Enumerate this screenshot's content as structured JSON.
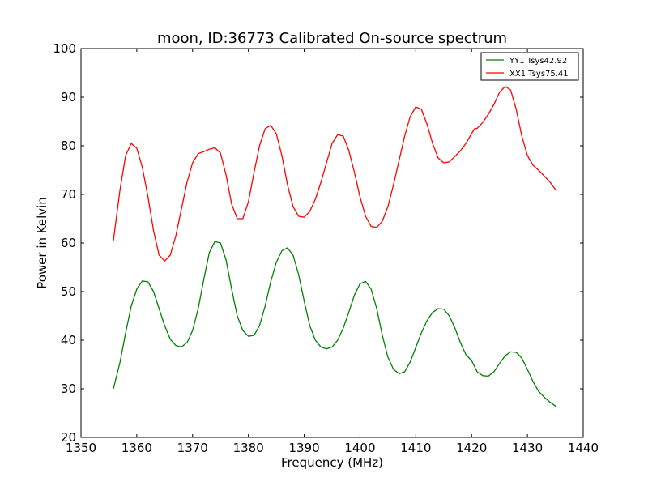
{
  "chart_data": {
    "type": "line",
    "title": "moon, ID:36773 Calibrated On-source spectrum",
    "xlabel": "Frequency (MHz)",
    "ylabel": "Power in Kelvin",
    "xlim": [
      1350,
      1440
    ],
    "ylim": [
      20,
      100
    ],
    "xticks": [
      1350,
      1360,
      1370,
      1380,
      1390,
      1400,
      1410,
      1420,
      1430,
      1440
    ],
    "yticks": [
      20,
      30,
      40,
      50,
      60,
      70,
      80,
      90,
      100
    ],
    "grid": false,
    "legend_position": "top-right",
    "series": [
      {
        "name": "YY1 Tsys42.92",
        "color": "#008000",
        "points": [
          [
            1355.8,
            30.0
          ],
          [
            1357.0,
            35.5
          ],
          [
            1358.0,
            41.5
          ],
          [
            1359.0,
            47.0
          ],
          [
            1360.0,
            50.5
          ],
          [
            1361.0,
            52.2
          ],
          [
            1362.0,
            52.0
          ],
          [
            1363.0,
            50.0
          ],
          [
            1364.0,
            46.5
          ],
          [
            1365.0,
            43.0
          ],
          [
            1366.0,
            40.2
          ],
          [
            1367.0,
            38.9
          ],
          [
            1368.0,
            38.6
          ],
          [
            1369.0,
            39.5
          ],
          [
            1370.0,
            42.0
          ],
          [
            1371.0,
            46.5
          ],
          [
            1372.0,
            52.5
          ],
          [
            1373.0,
            58.0
          ],
          [
            1374.0,
            60.3
          ],
          [
            1375.0,
            60.0
          ],
          [
            1376.0,
            56.5
          ],
          [
            1377.0,
            50.5
          ],
          [
            1378.0,
            45.0
          ],
          [
            1379.0,
            42.0
          ],
          [
            1380.0,
            40.8
          ],
          [
            1381.0,
            41.0
          ],
          [
            1382.0,
            43.0
          ],
          [
            1383.0,
            47.0
          ],
          [
            1384.0,
            52.0
          ],
          [
            1385.0,
            56.0
          ],
          [
            1386.0,
            58.4
          ],
          [
            1387.0,
            59.0
          ],
          [
            1388.0,
            57.5
          ],
          [
            1389.0,
            53.5
          ],
          [
            1390.0,
            48.0
          ],
          [
            1391.0,
            43.0
          ],
          [
            1392.0,
            40.0
          ],
          [
            1393.0,
            38.6
          ],
          [
            1394.0,
            38.2
          ],
          [
            1395.0,
            38.6
          ],
          [
            1396.0,
            40.0
          ],
          [
            1397.0,
            42.5
          ],
          [
            1398.0,
            45.8
          ],
          [
            1399.0,
            49.3
          ],
          [
            1400.0,
            51.6
          ],
          [
            1401.0,
            52.1
          ],
          [
            1402.0,
            50.5
          ],
          [
            1403.0,
            46.5
          ],
          [
            1404.0,
            41.0
          ],
          [
            1405.0,
            36.5
          ],
          [
            1406.0,
            34.0
          ],
          [
            1407.0,
            33.1
          ],
          [
            1408.0,
            33.5
          ],
          [
            1409.0,
            35.5
          ],
          [
            1410.0,
            38.5
          ],
          [
            1411.0,
            41.5
          ],
          [
            1412.0,
            44.0
          ],
          [
            1413.0,
            45.7
          ],
          [
            1414.0,
            46.5
          ],
          [
            1415.0,
            46.4
          ],
          [
            1416.0,
            45.0
          ],
          [
            1417.0,
            42.5
          ],
          [
            1418.0,
            39.5
          ],
          [
            1419.0,
            37.0
          ],
          [
            1420.0,
            35.8
          ],
          [
            1421.0,
            33.5
          ],
          [
            1422.0,
            32.7
          ],
          [
            1423.0,
            32.6
          ],
          [
            1424.0,
            33.5
          ],
          [
            1425.0,
            35.2
          ],
          [
            1426.0,
            36.8
          ],
          [
            1427.0,
            37.6
          ],
          [
            1428.0,
            37.5
          ],
          [
            1429.0,
            36.3
          ],
          [
            1430.0,
            34.0
          ],
          [
            1431.0,
            31.5
          ],
          [
            1432.0,
            29.5
          ],
          [
            1433.0,
            28.3
          ],
          [
            1434.0,
            27.3
          ],
          [
            1435.2,
            26.3
          ]
        ]
      },
      {
        "name": "XX1 Tsys75.41",
        "color": "#ff0000",
        "points": [
          [
            1355.8,
            60.5
          ],
          [
            1357.0,
            71.0
          ],
          [
            1358.0,
            78.0
          ],
          [
            1359.0,
            80.5
          ],
          [
            1360.0,
            79.5
          ],
          [
            1361.0,
            75.5
          ],
          [
            1362.0,
            69.5
          ],
          [
            1363.0,
            62.5
          ],
          [
            1364.0,
            57.5
          ],
          [
            1365.0,
            56.3
          ],
          [
            1366.0,
            57.5
          ],
          [
            1367.0,
            61.5
          ],
          [
            1368.0,
            67.0
          ],
          [
            1369.0,
            72.5
          ],
          [
            1370.0,
            76.5
          ],
          [
            1371.0,
            78.4
          ],
          [
            1372.0,
            78.8
          ],
          [
            1373.0,
            79.3
          ],
          [
            1374.0,
            79.6
          ],
          [
            1375.0,
            78.5
          ],
          [
            1376.0,
            74.0
          ],
          [
            1377.0,
            68.0
          ],
          [
            1378.0,
            65.0
          ],
          [
            1379.0,
            65.0
          ],
          [
            1380.0,
            68.5
          ],
          [
            1381.0,
            74.5
          ],
          [
            1382.0,
            80.0
          ],
          [
            1383.0,
            83.5
          ],
          [
            1384.0,
            84.2
          ],
          [
            1385.0,
            82.5
          ],
          [
            1386.0,
            78.0
          ],
          [
            1387.0,
            72.0
          ],
          [
            1388.0,
            67.5
          ],
          [
            1389.0,
            65.5
          ],
          [
            1390.0,
            65.3
          ],
          [
            1391.0,
            66.5
          ],
          [
            1392.0,
            69.0
          ],
          [
            1393.0,
            72.5
          ],
          [
            1394.0,
            76.5
          ],
          [
            1395.0,
            80.5
          ],
          [
            1396.0,
            82.3
          ],
          [
            1397.0,
            82.0
          ],
          [
            1398.0,
            79.0
          ],
          [
            1399.0,
            74.5
          ],
          [
            1400.0,
            69.5
          ],
          [
            1401.0,
            65.5
          ],
          [
            1402.0,
            63.4
          ],
          [
            1403.0,
            63.2
          ],
          [
            1404.0,
            64.5
          ],
          [
            1405.0,
            67.5
          ],
          [
            1406.0,
            72.0
          ],
          [
            1407.0,
            77.0
          ],
          [
            1408.0,
            82.0
          ],
          [
            1409.0,
            86.0
          ],
          [
            1410.0,
            88.0
          ],
          [
            1411.0,
            87.5
          ],
          [
            1412.0,
            84.5
          ],
          [
            1413.0,
            80.5
          ],
          [
            1414.0,
            77.5
          ],
          [
            1415.0,
            76.5
          ],
          [
            1416.0,
            76.7
          ],
          [
            1417.0,
            77.8
          ],
          [
            1418.0,
            79.0
          ],
          [
            1419.0,
            80.5
          ],
          [
            1420.0,
            82.5
          ],
          [
            1420.5,
            83.5
          ],
          [
            1421.0,
            83.6
          ],
          [
            1422.0,
            84.8
          ],
          [
            1423.0,
            86.5
          ],
          [
            1424.0,
            88.5
          ],
          [
            1425.0,
            91.0
          ],
          [
            1426.0,
            92.2
          ],
          [
            1427.0,
            91.5
          ],
          [
            1428.0,
            87.5
          ],
          [
            1429.0,
            82.0
          ],
          [
            1430.0,
            78.0
          ],
          [
            1431.0,
            76.0
          ],
          [
            1432.0,
            75.0
          ],
          [
            1433.0,
            73.8
          ],
          [
            1434.0,
            72.6
          ],
          [
            1435.2,
            70.7
          ]
        ]
      }
    ]
  }
}
